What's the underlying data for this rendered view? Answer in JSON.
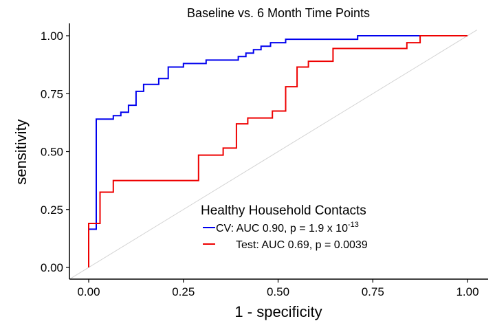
{
  "chart_data": {
    "type": "line",
    "title": "Baseline vs. 6 Month Time Points",
    "xlabel": "1 - specificity",
    "ylabel": "sensitivity",
    "xlim": [
      0,
      1
    ],
    "ylim": [
      0,
      1
    ],
    "x_ticks": [
      "0.00",
      "0.25",
      "0.50",
      "0.75",
      "1.00"
    ],
    "y_ticks": [
      "0.00",
      "0.25",
      "0.50",
      "0.75",
      "1.00"
    ],
    "grid": false,
    "diagonal_reference": true,
    "legend": {
      "title": "Healthy Household Contacts",
      "placement": "bottom-center",
      "entries": [
        {
          "label": "CV: AUC 0.90, p = 1.9 x 10",
          "superscript": "-13",
          "color": "#0000ee"
        },
        {
          "label": "Test: AUC 0.69, p = 0.0039",
          "superscript": "",
          "color": "#ee0000"
        }
      ]
    },
    "series": [
      {
        "name": "CV",
        "color": "#0000ee",
        "points": [
          [
            0,
            0
          ],
          [
            0,
            0.165
          ],
          [
            0.02,
            0.165
          ],
          [
            0.02,
            0.64
          ],
          [
            0.065,
            0.64
          ],
          [
            0.065,
            0.655
          ],
          [
            0.085,
            0.655
          ],
          [
            0.085,
            0.67
          ],
          [
            0.105,
            0.67
          ],
          [
            0.105,
            0.7
          ],
          [
            0.125,
            0.7
          ],
          [
            0.125,
            0.76
          ],
          [
            0.145,
            0.76
          ],
          [
            0.145,
            0.79
          ],
          [
            0.185,
            0.79
          ],
          [
            0.185,
            0.815
          ],
          [
            0.21,
            0.815
          ],
          [
            0.21,
            0.865
          ],
          [
            0.25,
            0.865
          ],
          [
            0.25,
            0.88
          ],
          [
            0.31,
            0.88
          ],
          [
            0.31,
            0.895
          ],
          [
            0.395,
            0.895
          ],
          [
            0.395,
            0.91
          ],
          [
            0.415,
            0.91
          ],
          [
            0.415,
            0.925
          ],
          [
            0.435,
            0.925
          ],
          [
            0.435,
            0.94
          ],
          [
            0.455,
            0.94
          ],
          [
            0.455,
            0.955
          ],
          [
            0.48,
            0.955
          ],
          [
            0.48,
            0.97
          ],
          [
            0.52,
            0.97
          ],
          [
            0.52,
            0.985
          ],
          [
            0.71,
            0.985
          ],
          [
            0.71,
            1.0
          ],
          [
            1.0,
            1.0
          ]
        ]
      },
      {
        "name": "Test",
        "color": "#ee0000",
        "points": [
          [
            0,
            0
          ],
          [
            0,
            0.19
          ],
          [
            0.03,
            0.19
          ],
          [
            0.03,
            0.325
          ],
          [
            0.065,
            0.325
          ],
          [
            0.065,
            0.375
          ],
          [
            0.29,
            0.375
          ],
          [
            0.29,
            0.485
          ],
          [
            0.355,
            0.485
          ],
          [
            0.355,
            0.515
          ],
          [
            0.39,
            0.515
          ],
          [
            0.39,
            0.62
          ],
          [
            0.42,
            0.62
          ],
          [
            0.42,
            0.645
          ],
          [
            0.485,
            0.645
          ],
          [
            0.485,
            0.675
          ],
          [
            0.52,
            0.675
          ],
          [
            0.52,
            0.78
          ],
          [
            0.55,
            0.78
          ],
          [
            0.55,
            0.865
          ],
          [
            0.58,
            0.865
          ],
          [
            0.58,
            0.89
          ],
          [
            0.645,
            0.89
          ],
          [
            0.645,
            0.945
          ],
          [
            0.84,
            0.945
          ],
          [
            0.84,
            0.97
          ],
          [
            0.875,
            0.97
          ],
          [
            0.875,
            1.0
          ],
          [
            1.0,
            1.0
          ]
        ]
      }
    ]
  }
}
